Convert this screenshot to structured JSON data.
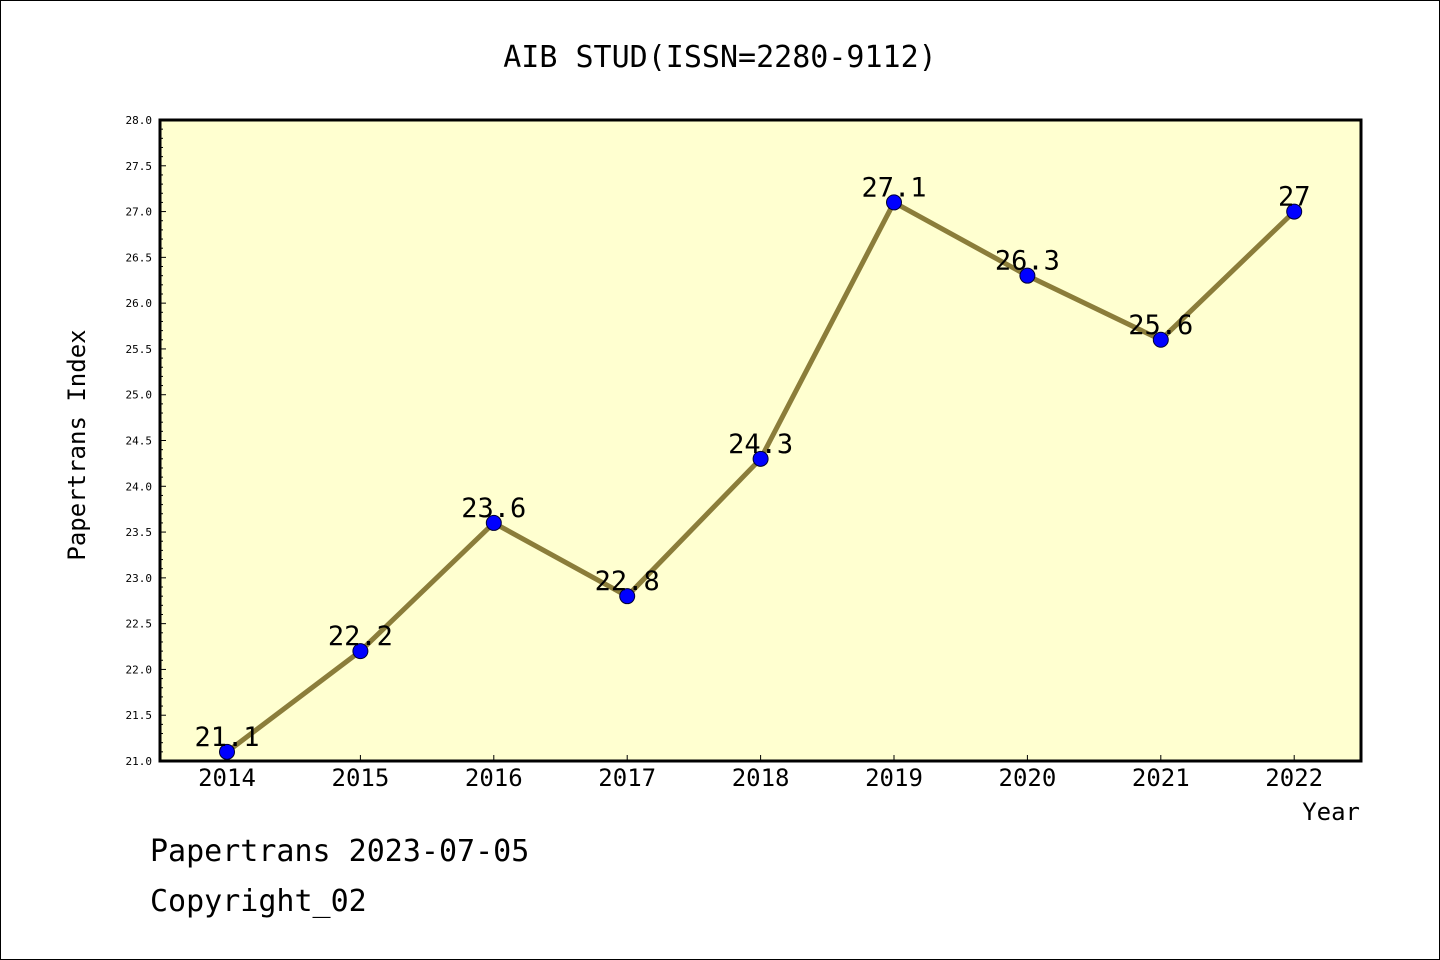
{
  "chart_data": {
    "type": "line",
    "title": "AIB STUD(ISSN=2280-9112)",
    "xlabel": "Year",
    "ylabel": "Papertrans Index",
    "categories": [
      "2014",
      "2015",
      "2016",
      "2017",
      "2018",
      "2019",
      "2020",
      "2021",
      "2022"
    ],
    "series": [
      {
        "values": [
          21.1,
          22.2,
          23.6,
          22.8,
          24.3,
          27.1,
          26.3,
          25.6,
          27
        ],
        "labels": [
          "21.1",
          "22.2",
          "23.6",
          "22.8",
          "24.3",
          "27.1",
          "26.3",
          "25.6",
          "27"
        ]
      }
    ],
    "ylim": [
      21.0,
      28.0
    ],
    "yticks": [
      "21.0",
      "21.5",
      "22.0",
      "22.5",
      "23.0",
      "23.5",
      "24.0",
      "24.5",
      "25.0",
      "25.5",
      "26.0",
      "26.5",
      "27.0",
      "27.5",
      "28.0"
    ],
    "grid": false,
    "colors": {
      "plot_background": "#ffffd0",
      "line": "#8b7d3a",
      "marker": "#0000ff"
    }
  },
  "footer": {
    "line1": "Papertrans 2023-07-05",
    "line2": "Copyright_02"
  }
}
